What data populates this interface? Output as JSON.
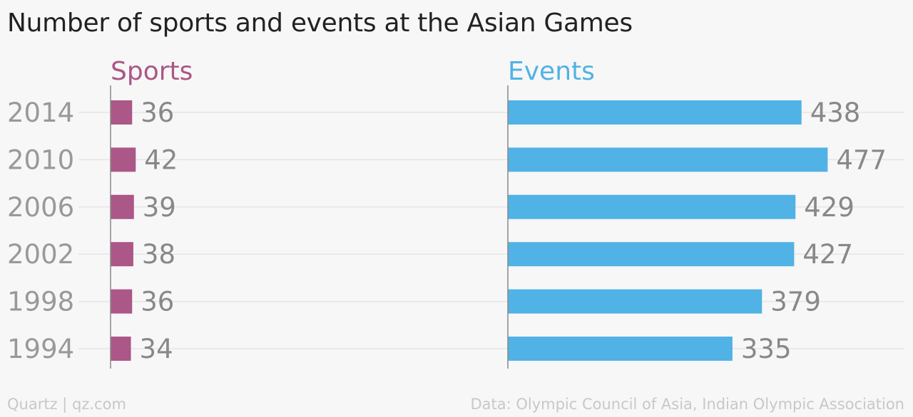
{
  "title": "Number of sports and events at the Asian Games",
  "footer": {
    "source_left": "Quartz | qz.com",
    "source_right": "Data: Olympic Council of Asia, Indian Olympic Association"
  },
  "colors": {
    "sports": "#ab5787",
    "events": "#51b2e5",
    "gridline": "#e6e6e6",
    "axis": "#888888"
  },
  "chart_data": {
    "type": "bar",
    "orientation": "horizontal",
    "categories": [
      "2014",
      "2010",
      "2006",
      "2002",
      "1998",
      "1994"
    ],
    "series": [
      {
        "name": "Sports",
        "values": [
          36,
          42,
          39,
          38,
          36,
          34
        ]
      },
      {
        "name": "Events",
        "values": [
          438,
          477,
          429,
          427,
          379,
          335
        ]
      }
    ],
    "title": "Number of sports and events at the Asian Games",
    "xlabel": "",
    "ylabel": "",
    "grid": true,
    "legend": "panel titles above each bar group"
  }
}
